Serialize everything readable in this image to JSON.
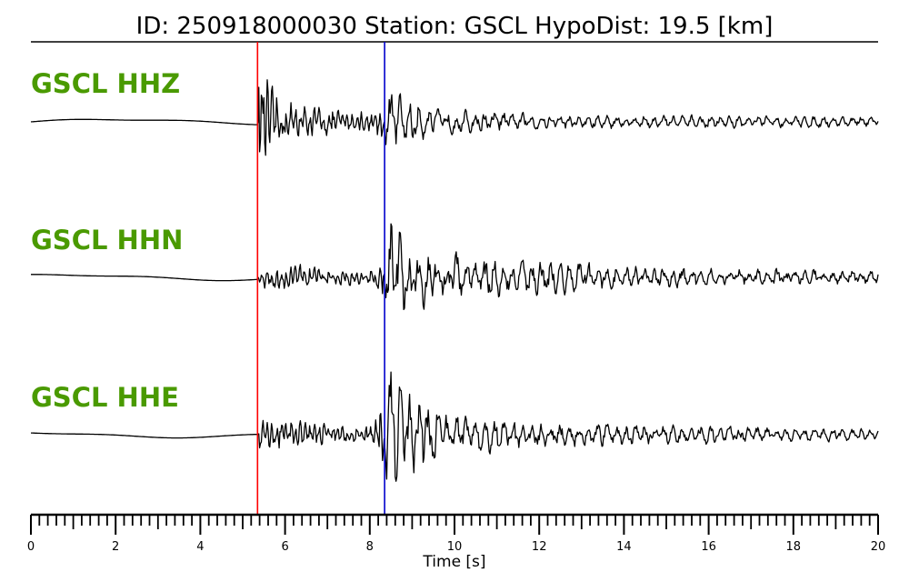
{
  "header": {
    "title": "ID: 250918000030   Station: GSCL   HypoDist:     19.5 [km]"
  },
  "colors": {
    "label": "#4a9a00",
    "p_pick": "#ff0000",
    "s_pick": "#0000cc",
    "trace": "#000000"
  },
  "chart_data": {
    "type": "line",
    "title": "ID: 250918000030   Station: GSCL   HypoDist:     19.5 [km]",
    "xlabel": "Time [s]",
    "ylabel": "",
    "xlim": [
      0,
      20
    ],
    "x_major_ticks": [
      0,
      2,
      4,
      6,
      8,
      10,
      12,
      14,
      16,
      18,
      20
    ],
    "x_minor_step": 0.2,
    "picks": [
      {
        "phase": "P",
        "time": 5.35,
        "color": "#ff0000"
      },
      {
        "phase": "S",
        "time": 8.35,
        "color": "#0000cc"
      }
    ],
    "series": [
      {
        "name": "GSCL HHZ",
        "envelope": [
          [
            0,
            0.01
          ],
          [
            5.3,
            0.02
          ],
          [
            5.35,
            0.9
          ],
          [
            5.45,
            1.0
          ],
          [
            5.7,
            0.5
          ],
          [
            6.5,
            0.25
          ],
          [
            8.0,
            0.2
          ],
          [
            8.35,
            0.4
          ],
          [
            8.5,
            0.45
          ],
          [
            9.5,
            0.2
          ],
          [
            12.0,
            0.12
          ],
          [
            15.0,
            0.1
          ],
          [
            20.0,
            0.08
          ]
        ]
      },
      {
        "name": "GSCL HHN",
        "envelope": [
          [
            0,
            0.01
          ],
          [
            5.3,
            0.02
          ],
          [
            5.35,
            0.15
          ],
          [
            6.0,
            0.2
          ],
          [
            8.0,
            0.12
          ],
          [
            8.35,
            0.3
          ],
          [
            8.5,
            1.0
          ],
          [
            8.8,
            0.6
          ],
          [
            9.5,
            0.35
          ],
          [
            12.0,
            0.25
          ],
          [
            15.0,
            0.15
          ],
          [
            20.0,
            0.1
          ]
        ]
      },
      {
        "name": "GSCL HHE",
        "envelope": [
          [
            0,
            0.01
          ],
          [
            5.3,
            0.02
          ],
          [
            5.35,
            0.25
          ],
          [
            6.0,
            0.25
          ],
          [
            8.0,
            0.12
          ],
          [
            8.35,
            0.7
          ],
          [
            8.45,
            1.0
          ],
          [
            9.0,
            0.6
          ],
          [
            10.0,
            0.3
          ],
          [
            12.0,
            0.2
          ],
          [
            15.0,
            0.15
          ],
          [
            20.0,
            0.08
          ]
        ]
      }
    ]
  }
}
